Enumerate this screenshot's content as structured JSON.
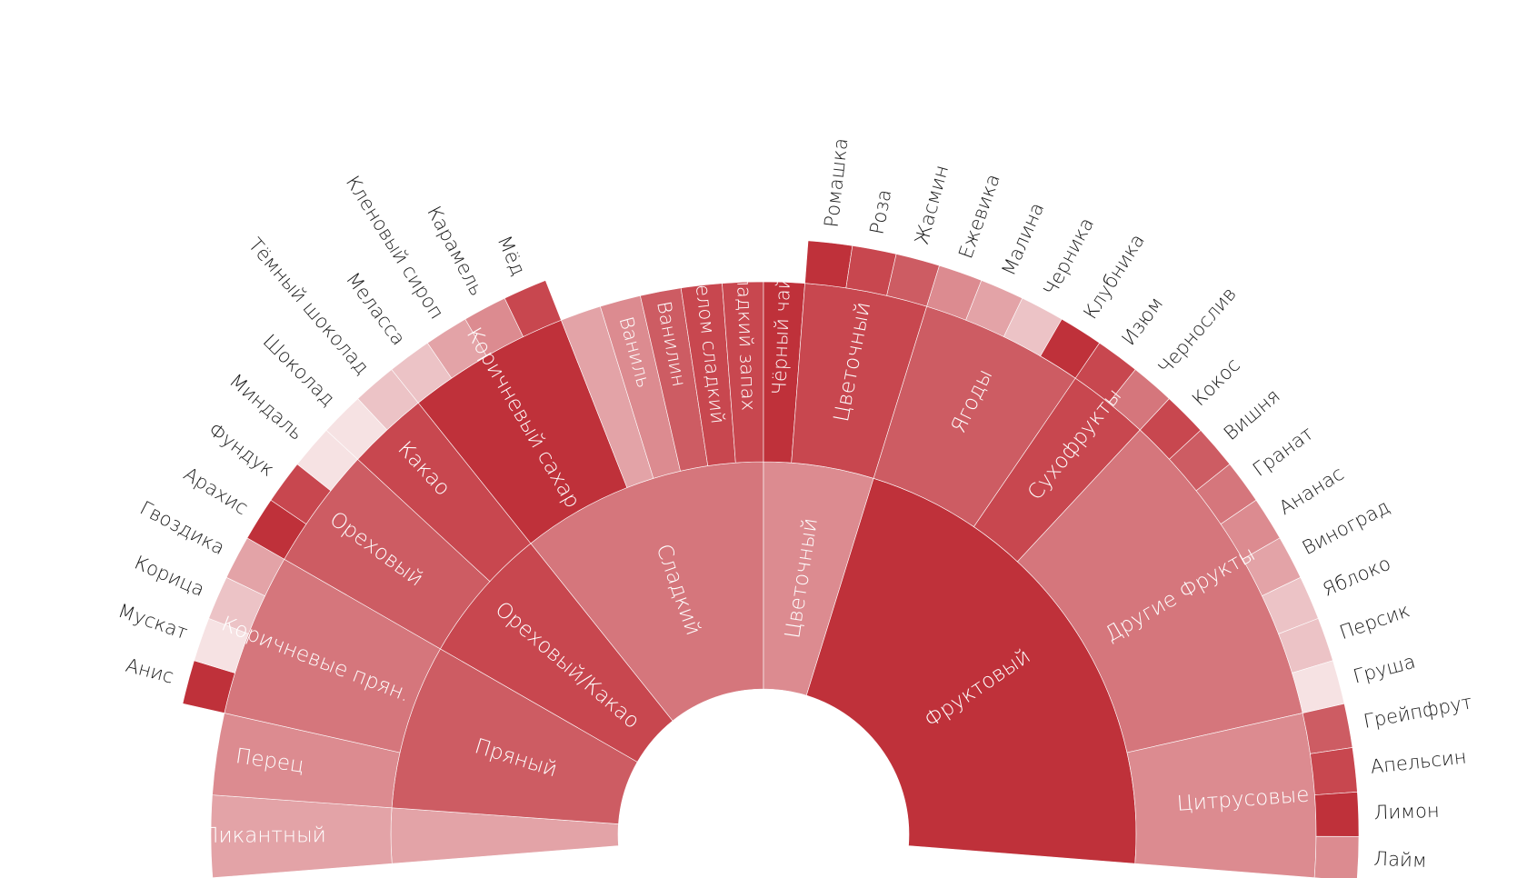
{
  "chart_data": {
    "type": "sunburst",
    "title": "",
    "palette": {
      "c1": "#bf313a",
      "c2": "#c8474f",
      "c3": "#cd5c63",
      "c4": "#d5767c",
      "c5": "#dc8b90",
      "c6": "#e3a3a7",
      "c7": "#ecc3c6",
      "c8": "#f6e2e3"
    },
    "rings": {
      "categories": [
        {
          "name": "Пикантный",
          "subs": [
            {
              "name": "Пикантный",
              "value": 2,
              "color": "#e3a3a7"
            }
          ]
        },
        {
          "name": "Пряный",
          "subs": [
            {
              "name": "Перец",
              "value": 2,
              "color": "#dc8b90"
            },
            {
              "name": "Коричневые прян.",
              "value": 4,
              "color": "#d5767c",
              "items": [
                {
                  "name": "Анис",
                  "color": "#bf313a"
                },
                {
                  "name": "Мускат",
                  "color": "#f6e2e3"
                },
                {
                  "name": "Корица",
                  "color": "#ecc3c6"
                },
                {
                  "name": "Гвоздика",
                  "color": "#e3a3a7"
                }
              ]
            }
          ]
        },
        {
          "name": "Ореховый/Какао",
          "subs": [
            {
              "name": "Ореховый",
              "value": 3,
              "color": "#cd5c63",
              "items": [
                {
                  "name": "Арахис",
                  "color": "#bf313a"
                },
                {
                  "name": "Фундук",
                  "color": "#c8474f"
                },
                {
                  "name": "Миндаль",
                  "color": "#f6e2e3"
                }
              ]
            },
            {
              "name": "Какао",
              "value": 2,
              "color": "#c8474f",
              "items": [
                {
                  "name": "Шоколад",
                  "color": "#f6e2e3"
                },
                {
                  "name": "Тёмный шоколад",
                  "color": "#ecc3c6"
                }
              ]
            }
          ]
        },
        {
          "name": "Сладкий",
          "subs": [
            {
              "name": "Коричневый сахар",
              "value": 4,
              "color": "#bf313a",
              "items": [
                {
                  "name": "Меласса",
                  "color": "#ecc3c6"
                },
                {
                  "name": "Кленовый сироп",
                  "color": "#e3a3a7"
                },
                {
                  "name": "Карамель",
                  "color": "#dc8b90"
                },
                {
                  "name": "Мёд",
                  "color": "#c8474f"
                }
              ]
            },
            {
              "name": "",
              "value": 1,
              "color": "#e3a3a7"
            },
            {
              "name": "Ваниль",
              "value": 1,
              "color": "#dc8b90"
            },
            {
              "name": "Ванилин",
              "value": 1,
              "color": "#cd5c63"
            },
            {
              "name": "В целом сладкий",
              "value": 1,
              "color": "#c8474f"
            },
            {
              "name": "Сладкий запах",
              "value": 1,
              "color": "#c8474f"
            }
          ]
        },
        {
          "name": "Цветочный",
          "subs": [
            {
              "name": "Чёрный чай",
              "value": 1,
              "color": "#bf313a"
            },
            {
              "name": "Цветочный",
              "value": 3,
              "color": "#c8474f",
              "items": [
                {
                  "name": "Ромашка",
                  "color": "#bf313a"
                },
                {
                  "name": "Роза",
                  "color": "#c8474f"
                },
                {
                  "name": "Жасмин",
                  "color": "#cd5c63"
                }
              ]
            }
          ]
        },
        {
          "name": "Фруктовый",
          "subs": [
            {
              "name": "Ягоды",
              "value": 4,
              "color": "#cd5c63",
              "items": [
                {
                  "name": "Ежевика",
                  "color": "#dc8b90"
                },
                {
                  "name": "Малина",
                  "color": "#e3a3a7"
                },
                {
                  "name": "Черника",
                  "color": "#ecc3c6"
                },
                {
                  "name": "Клубника",
                  "color": "#bf313a"
                }
              ]
            },
            {
              "name": "Сухофрукты",
              "value": 2,
              "color": "#c8474f",
              "items": [
                {
                  "name": "Изюм",
                  "color": "#c8474f"
                },
                {
                  "name": "Чернослив",
                  "color": "#d5767c"
                }
              ]
            },
            {
              "name": "Другие Фрукты",
              "value": 8,
              "color": "#d5767c",
              "items": [
                {
                  "name": "Кокос",
                  "color": "#c8474f"
                },
                {
                  "name": "Вишня",
                  "color": "#cd5c63"
                },
                {
                  "name": "Гранат",
                  "color": "#d5767c"
                },
                {
                  "name": "Ананас",
                  "color": "#dc8b90"
                },
                {
                  "name": "Виноград",
                  "color": "#e3a3a7"
                },
                {
                  "name": "Яблоко",
                  "color": "#ecc3c6"
                },
                {
                  "name": "Персик",
                  "color": "#ecc3c6"
                },
                {
                  "name": "Груша",
                  "color": "#f6e2e3"
                }
              ]
            },
            {
              "name": "Цитрусовые",
              "value": 4,
              "color": "#dc8b90",
              "items": [
                {
                  "name": "Грейпфрут",
                  "color": "#cd5c63"
                },
                {
                  "name": "Апельсин",
                  "color": "#c8474f"
                },
                {
                  "name": "Лимон",
                  "color": "#bf313a"
                },
                {
                  "name": "Лайм",
                  "color": "#dc8b90"
                }
              ]
            }
          ]
        }
      ],
      "category_colors": {
        "Пикантный": "#e3a3a7",
        "Пряный": "#cd5c63",
        "Ореховый/Какао": "#c8474f",
        "Сладкий": "#d5767c",
        "Цветочный": "#dc8b90",
        "Фруктовый": "#bf313a"
      }
    }
  }
}
